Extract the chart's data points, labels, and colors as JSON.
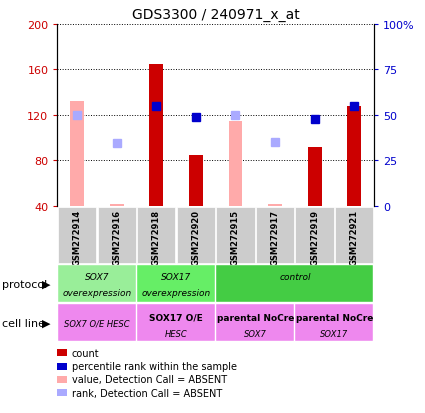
{
  "title": "GDS3300 / 240971_x_at",
  "samples": [
    "GSM272914",
    "GSM272916",
    "GSM272918",
    "GSM272920",
    "GSM272915",
    "GSM272917",
    "GSM272919",
    "GSM272921"
  ],
  "count_values": [
    null,
    null,
    165,
    85,
    null,
    null,
    92,
    128
  ],
  "count_absent": [
    132,
    42,
    null,
    null,
    115,
    42,
    null,
    null
  ],
  "rank_values": [
    null,
    null,
    128,
    118,
    null,
    null,
    116,
    128
  ],
  "rank_absent": [
    120,
    95,
    null,
    null,
    120,
    96,
    null,
    null
  ],
  "ylim_left": [
    40,
    200
  ],
  "yticks_left": [
    40,
    80,
    120,
    160,
    200
  ],
  "ytick_labels_left": [
    "40",
    "80",
    "120",
    "160",
    "200"
  ],
  "yticks_right_pct": [
    0,
    25,
    50,
    75,
    100
  ],
  "ytick_labels_right": [
    "0",
    "25",
    "50",
    "75",
    "100%"
  ],
  "color_count": "#cc0000",
  "color_count_absent": "#ffaaaa",
  "color_rank": "#0000cc",
  "color_rank_absent": "#aaaaff",
  "bar_width": 0.35,
  "proto_labels": [
    "SOX7\noverexpression",
    "SOX17\noverexpression",
    "control"
  ],
  "proto_ranges": [
    [
      0,
      2
    ],
    [
      2,
      4
    ],
    [
      4,
      8
    ]
  ],
  "proto_colors": [
    "#99ee99",
    "#66ee66",
    "#44cc44"
  ],
  "cell_labels_line1": [
    "SOX7 O/E HESC",
    "SOX17 O/E",
    "parental NoCre",
    "parental NoCre"
  ],
  "cell_labels_line2": [
    "",
    "HESC",
    "SOX7",
    "SOX17"
  ],
  "cell_ranges": [
    [
      0,
      2
    ],
    [
      2,
      4
    ],
    [
      4,
      6
    ],
    [
      6,
      8
    ]
  ],
  "cell_color": "#ee88ee",
  "left_axis_color": "#cc0000",
  "right_axis_color": "#0000cc",
  "sample_bg": "#cccccc"
}
